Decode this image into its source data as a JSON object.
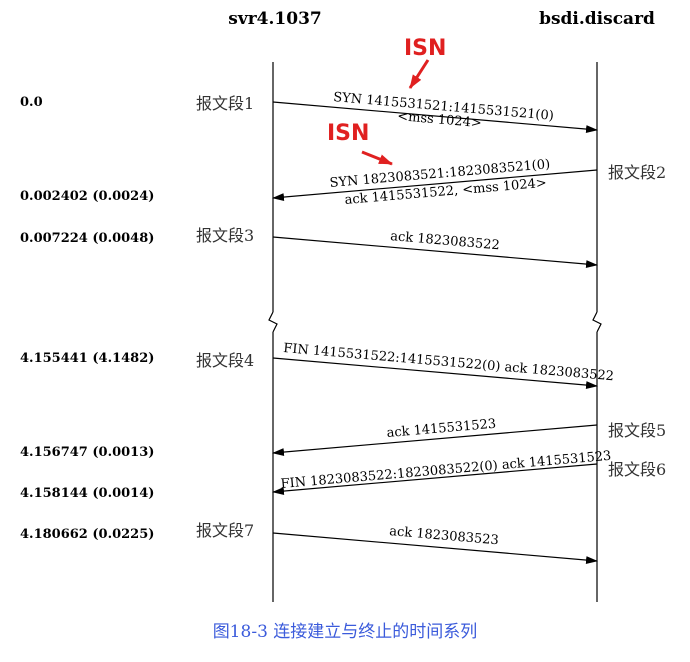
{
  "hosts": {
    "left": "svr4.1037",
    "right": "bsdi.discard"
  },
  "annotations": {
    "isn1": "ISN",
    "isn2": "ISN"
  },
  "times": {
    "t1": "0.0",
    "t2": "0.002402 (0.0024)",
    "t3": "0.007224 (0.0048)",
    "t4": "4.155441 (4.1482)",
    "t5": "4.156747 (0.0013)",
    "t6": "4.158144 (0.0014)",
    "t7": "4.180662 (0.0225)"
  },
  "segments": {
    "s1": "报文段1",
    "s2": "报文段2",
    "s3": "报文段3",
    "s4": "报文段4",
    "s5": "报文段5",
    "s6": "报文段6",
    "s7": "报文段7"
  },
  "messages": {
    "m1a": "SYN  1415531521:1415531521(0)",
    "m1b": "<mss 1024>",
    "m2a": "SYN  1823083521:1823083521(0)",
    "m2b": "ack 1415531522, <mss 1024>",
    "m3": "ack 1823083522",
    "m4": "FIN  1415531522:1415531522(0) ack 1823083522",
    "m5": "ack 1415531523",
    "m6": "FIN  1823083522:1823083522(0) ack 1415531523",
    "m7": "ack 1823083523"
  },
  "caption": "图18-3   连接建立与终止的时间系列",
  "colors": {
    "isn": "#e02020",
    "caption": "#3b5bdb"
  }
}
